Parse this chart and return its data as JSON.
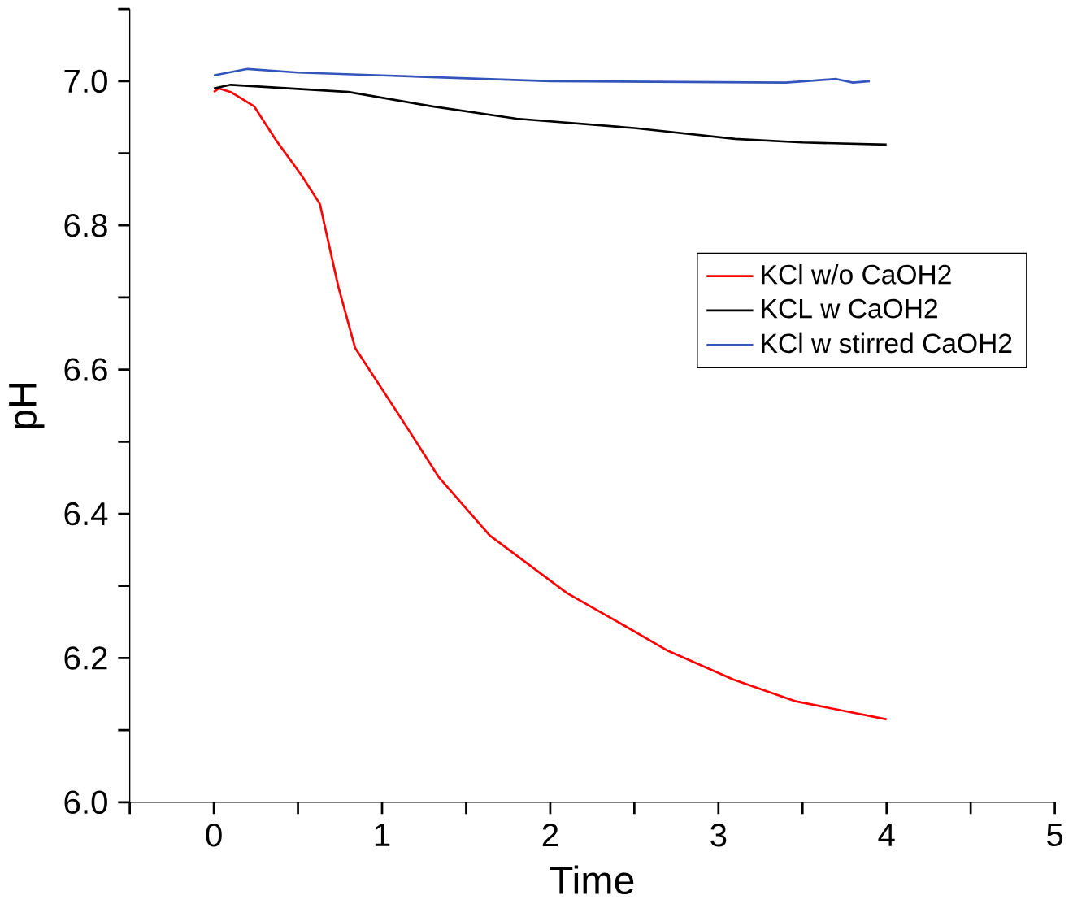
{
  "chart_data": {
    "type": "line",
    "xlabel": "Time",
    "ylabel": "pH",
    "xlim": [
      -0.5,
      5
    ],
    "ylim": [
      6.0,
      7.1
    ],
    "xticks": [
      {
        "value": -0.5,
        "label": null
      },
      0,
      {
        "value": 0.5,
        "label": null
      },
      1,
      {
        "value": 1.5,
        "label": null
      },
      2,
      {
        "value": 2.5,
        "label": null
      },
      3,
      {
        "value": 3.5,
        "label": null
      },
      4,
      {
        "value": 4.5,
        "label": null
      },
      5
    ],
    "yticks": [
      {
        "value": 6.0,
        "label": "6.0"
      },
      {
        "value": 6.1,
        "label": null
      },
      6.2,
      {
        "value": 6.3,
        "label": null
      },
      6.4,
      {
        "value": 6.5,
        "label": null
      },
      6.6,
      {
        "value": 6.7,
        "label": null
      },
      6.8,
      {
        "value": 6.9,
        "label": null
      },
      {
        "value": 7.0,
        "label": "7.0"
      },
      {
        "value": 7.1,
        "label": null
      }
    ],
    "legend": "right",
    "grid": false,
    "marker": "none",
    "line_style": "solid",
    "series": [
      {
        "name": "KCl w/o CaOH2",
        "color": "#ff0000",
        "x": [
          0,
          0.03,
          0.1,
          0.24,
          0.37,
          0.52,
          0.63,
          0.74,
          0.84,
          1.12,
          1.34,
          1.64,
          2.1,
          2.44,
          2.7,
          3.09,
          3.46,
          4.0
        ],
        "values": [
          6.985,
          6.99,
          6.985,
          6.965,
          6.918,
          6.87,
          6.83,
          6.715,
          6.63,
          6.53,
          6.45,
          6.37,
          6.29,
          6.245,
          6.21,
          6.17,
          6.14,
          6.115
        ]
      },
      {
        "name": "KCL w CaOH2",
        "color": "#000000",
        "x": [
          0,
          0.1,
          0.8,
          1.3,
          1.8,
          2.5,
          3.1,
          3.5,
          4.0
        ],
        "values": [
          6.99,
          6.995,
          6.985,
          6.965,
          6.948,
          6.935,
          6.92,
          6.915,
          6.912
        ]
      },
      {
        "name": "KCl w stirred CaOH2",
        "color": "#3355bb",
        "x": [
          0,
          0.2,
          0.5,
          1.0,
          2.0,
          3.4,
          3.7,
          3.8,
          3.9
        ],
        "values": [
          7.008,
          7.017,
          7.012,
          7.008,
          7.0,
          6.998,
          7.003,
          6.998,
          7.0
        ]
      }
    ]
  }
}
